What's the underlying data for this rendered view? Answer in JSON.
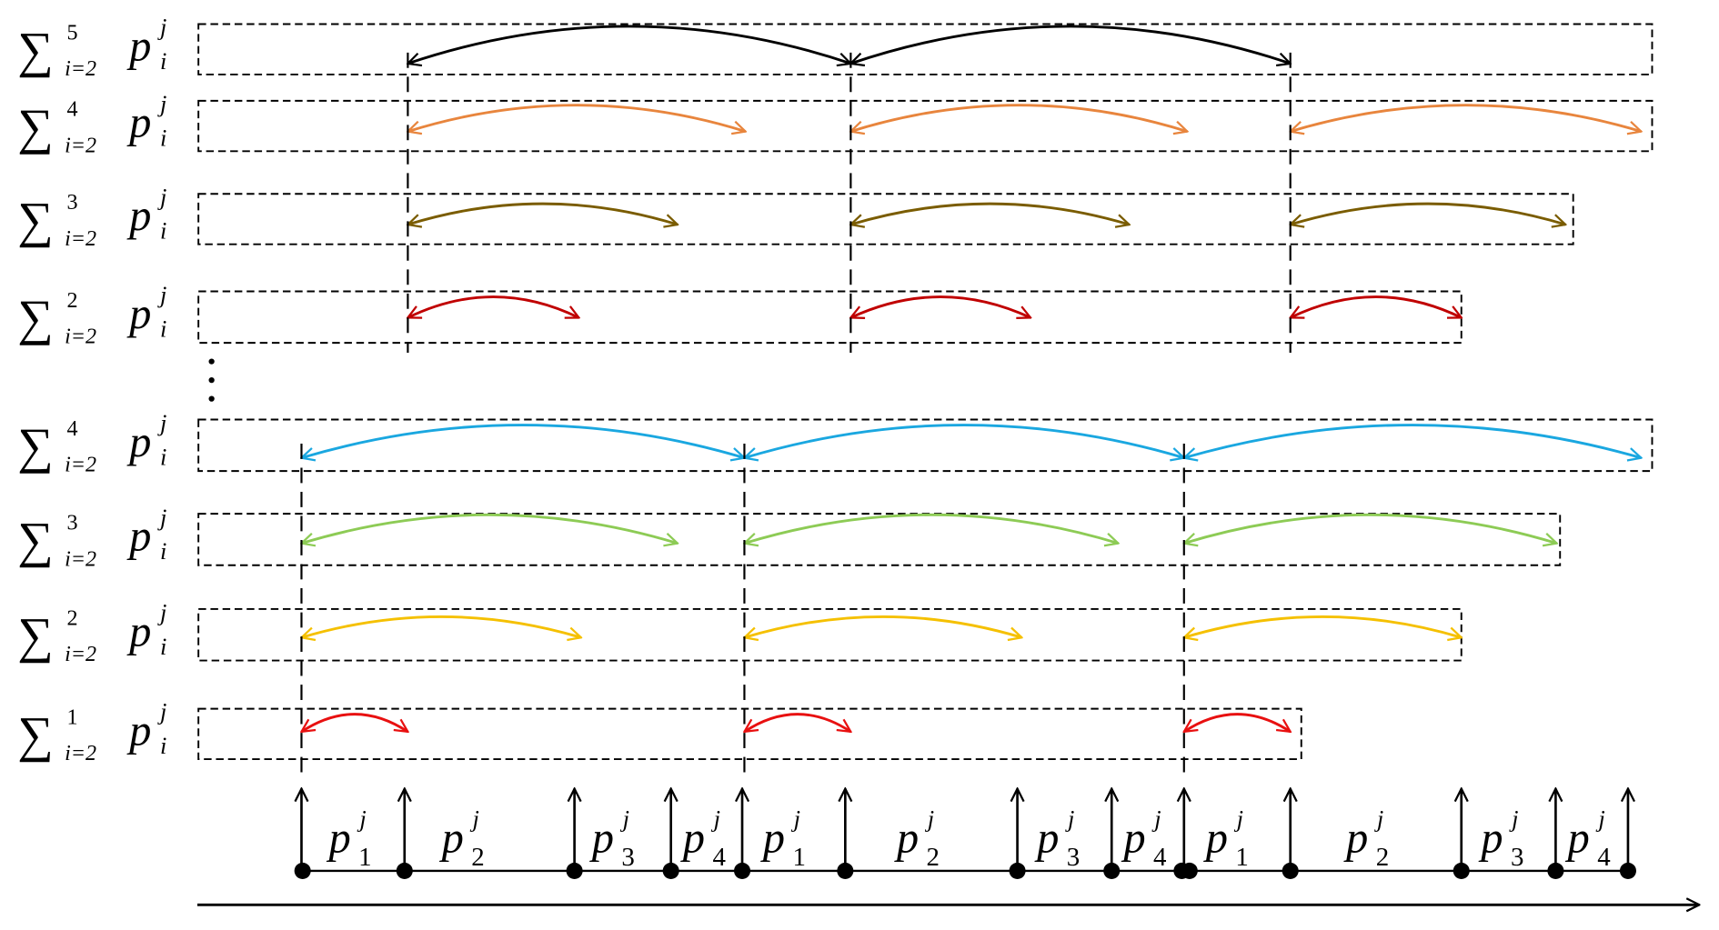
{
  "rows": [
    {
      "symbol": "∑",
      "upper": "5",
      "lower": "i=2",
      "base": "p",
      "sub": "i",
      "sup": "j"
    },
    {
      "symbol": "∑",
      "upper": "4",
      "lower": "i=2",
      "base": "p",
      "sub": "i",
      "sup": "j"
    },
    {
      "symbol": "∑",
      "upper": "3",
      "lower": "i=2",
      "base": "p",
      "sub": "i",
      "sup": "j"
    },
    {
      "symbol": "∑",
      "upper": "2",
      "lower": "i=2",
      "base": "p",
      "sub": "i",
      "sup": "j"
    },
    {
      "symbol": "∑",
      "upper": "4",
      "lower": "i=2",
      "base": "p",
      "sub": "i",
      "sup": "j"
    },
    {
      "symbol": "∑",
      "upper": "3",
      "lower": "i=2",
      "base": "p",
      "sub": "i",
      "sup": "j"
    },
    {
      "symbol": "∑",
      "upper": "2",
      "lower": "i=2",
      "base": "p",
      "sub": "i",
      "sup": "j"
    },
    {
      "symbol": "∑",
      "upper": "1",
      "lower": "i=2",
      "base": "p",
      "sub": "i",
      "sup": "j"
    }
  ],
  "timeline": [
    {
      "base": "p",
      "sub": "1",
      "sup": "j"
    },
    {
      "base": "p",
      "sub": "2",
      "sup": "j"
    },
    {
      "base": "p",
      "sub": "3",
      "sup": "j"
    },
    {
      "base": "p",
      "sub": "4",
      "sup": "j"
    },
    {
      "base": "p",
      "sub": "1",
      "sup": "j"
    },
    {
      "base": "p",
      "sub": "2",
      "sup": "j"
    },
    {
      "base": "p",
      "sub": "3",
      "sup": "j"
    },
    {
      "base": "p",
      "sub": "4",
      "sup": "j"
    },
    {
      "base": "p",
      "sub": "1",
      "sup": "j"
    },
    {
      "base": "p",
      "sub": "2",
      "sup": "j"
    },
    {
      "base": "p",
      "sub": "3",
      "sup": "j"
    },
    {
      "base": "p",
      "sub": "4",
      "sup": "j"
    }
  ]
}
